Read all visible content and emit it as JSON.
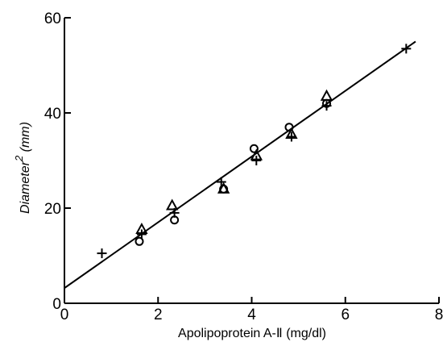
{
  "chart_data": {
    "type": "scatter",
    "title": "",
    "xlabel": "Apolipoprotein A-Ⅱ (mg/dl)",
    "ylabel_main": "Diameter",
    "ylabel_sup": "2",
    "ylabel_unit": "(mm)",
    "xlim": [
      0,
      8
    ],
    "ylim": [
      0,
      60
    ],
    "xticks": [
      0,
      2,
      4,
      6,
      8
    ],
    "yticks": [
      0,
      20,
      40,
      60
    ],
    "xtick_labels": [
      "0",
      "2",
      "4",
      "6",
      "8"
    ],
    "ytick_labels": [
      "0",
      "20",
      "40",
      "60"
    ],
    "grid": false,
    "legend": "none",
    "series": [
      {
        "marker": "plus",
        "points": [
          {
            "x": 0.8,
            "y": 10.5
          },
          {
            "x": 1.65,
            "y": 14.5
          },
          {
            "x": 2.35,
            "y": 19.0
          },
          {
            "x": 3.35,
            "y": 25.5
          },
          {
            "x": 4.1,
            "y": 30.0
          },
          {
            "x": 4.85,
            "y": 35.0
          },
          {
            "x": 5.6,
            "y": 41.5
          },
          {
            "x": 7.3,
            "y": 53.5
          }
        ]
      },
      {
        "marker": "circle",
        "points": [
          {
            "x": 1.6,
            "y": 13.0
          },
          {
            "x": 2.35,
            "y": 17.5
          },
          {
            "x": 3.4,
            "y": 24.0
          },
          {
            "x": 4.05,
            "y": 32.5
          },
          {
            "x": 4.8,
            "y": 37.0
          },
          {
            "x": 5.6,
            "y": 42.0
          }
        ]
      },
      {
        "marker": "triangle",
        "points": [
          {
            "x": 1.65,
            "y": 15.5
          },
          {
            "x": 2.3,
            "y": 20.5
          },
          {
            "x": 3.4,
            "y": 24.0
          },
          {
            "x": 4.1,
            "y": 31.0
          },
          {
            "x": 4.85,
            "y": 35.5
          },
          {
            "x": 5.6,
            "y": 43.5
          }
        ]
      }
    ],
    "fit_line": {
      "x": [
        0,
        7.5
      ],
      "y": [
        3.2,
        55.0
      ]
    }
  }
}
